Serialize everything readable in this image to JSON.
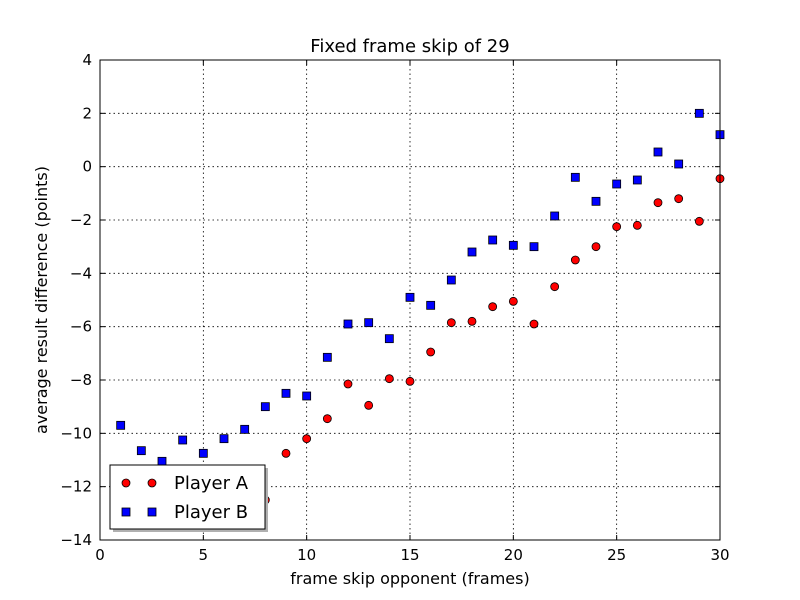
{
  "chart_data": {
    "type": "scatter",
    "title": "Fixed frame skip of 29",
    "xlabel": "frame skip opponent (frames)",
    "ylabel": "average result difference (points)",
    "xlim": [
      0,
      30
    ],
    "ylim": [
      -14,
      4
    ],
    "xticks": [
      0,
      5,
      10,
      15,
      20,
      25,
      30
    ],
    "yticks": [
      -14,
      -12,
      -10,
      -8,
      -6,
      -4,
      -2,
      0,
      2,
      4
    ],
    "xtick_labels": [
      "0",
      "5",
      "10",
      "15",
      "20",
      "25",
      "30"
    ],
    "ytick_labels": [
      "−14",
      "−12",
      "−10",
      "−8",
      "−6",
      "−4",
      "−2",
      "0",
      "2",
      "4"
    ],
    "grid": true,
    "legend_position": "lower-left",
    "series": [
      {
        "name": "Player A",
        "marker": "circle",
        "color": "#ff0000",
        "x": [
          8,
          9,
          10,
          11,
          12,
          13,
          14,
          15,
          16,
          17,
          18,
          19,
          20,
          21,
          22,
          23,
          24,
          25,
          26,
          27,
          28,
          29,
          30
        ],
        "y": [
          -12.5,
          -10.75,
          -10.2,
          -9.45,
          -8.15,
          -8.95,
          -7.95,
          -8.05,
          -6.95,
          -5.85,
          -5.8,
          -5.25,
          -5.05,
          -5.9,
          -4.5,
          -3.5,
          -3.0,
          -2.25,
          -2.2,
          -1.35,
          -1.2,
          -2.05,
          -0.45
        ]
      },
      {
        "name": "Player B",
        "marker": "square",
        "color": "#0000ff",
        "x": [
          1,
          2,
          3,
          4,
          5,
          6,
          7,
          8,
          9,
          10,
          11,
          12,
          13,
          14,
          15,
          16,
          17,
          18,
          19,
          20,
          21,
          22,
          23,
          24,
          25,
          26,
          27,
          28,
          29,
          30
        ],
        "y": [
          -9.7,
          -10.65,
          -11.05,
          -10.25,
          -10.75,
          -10.2,
          -9.85,
          -9.0,
          -8.5,
          -8.6,
          -7.15,
          -5.9,
          -5.85,
          -6.45,
          -4.9,
          -5.2,
          -4.25,
          -3.2,
          -2.75,
          -2.95,
          -3.0,
          -1.85,
          -0.4,
          -1.3,
          -0.65,
          -0.5,
          0.55,
          0.1,
          2.0,
          1.2
        ]
      }
    ]
  }
}
